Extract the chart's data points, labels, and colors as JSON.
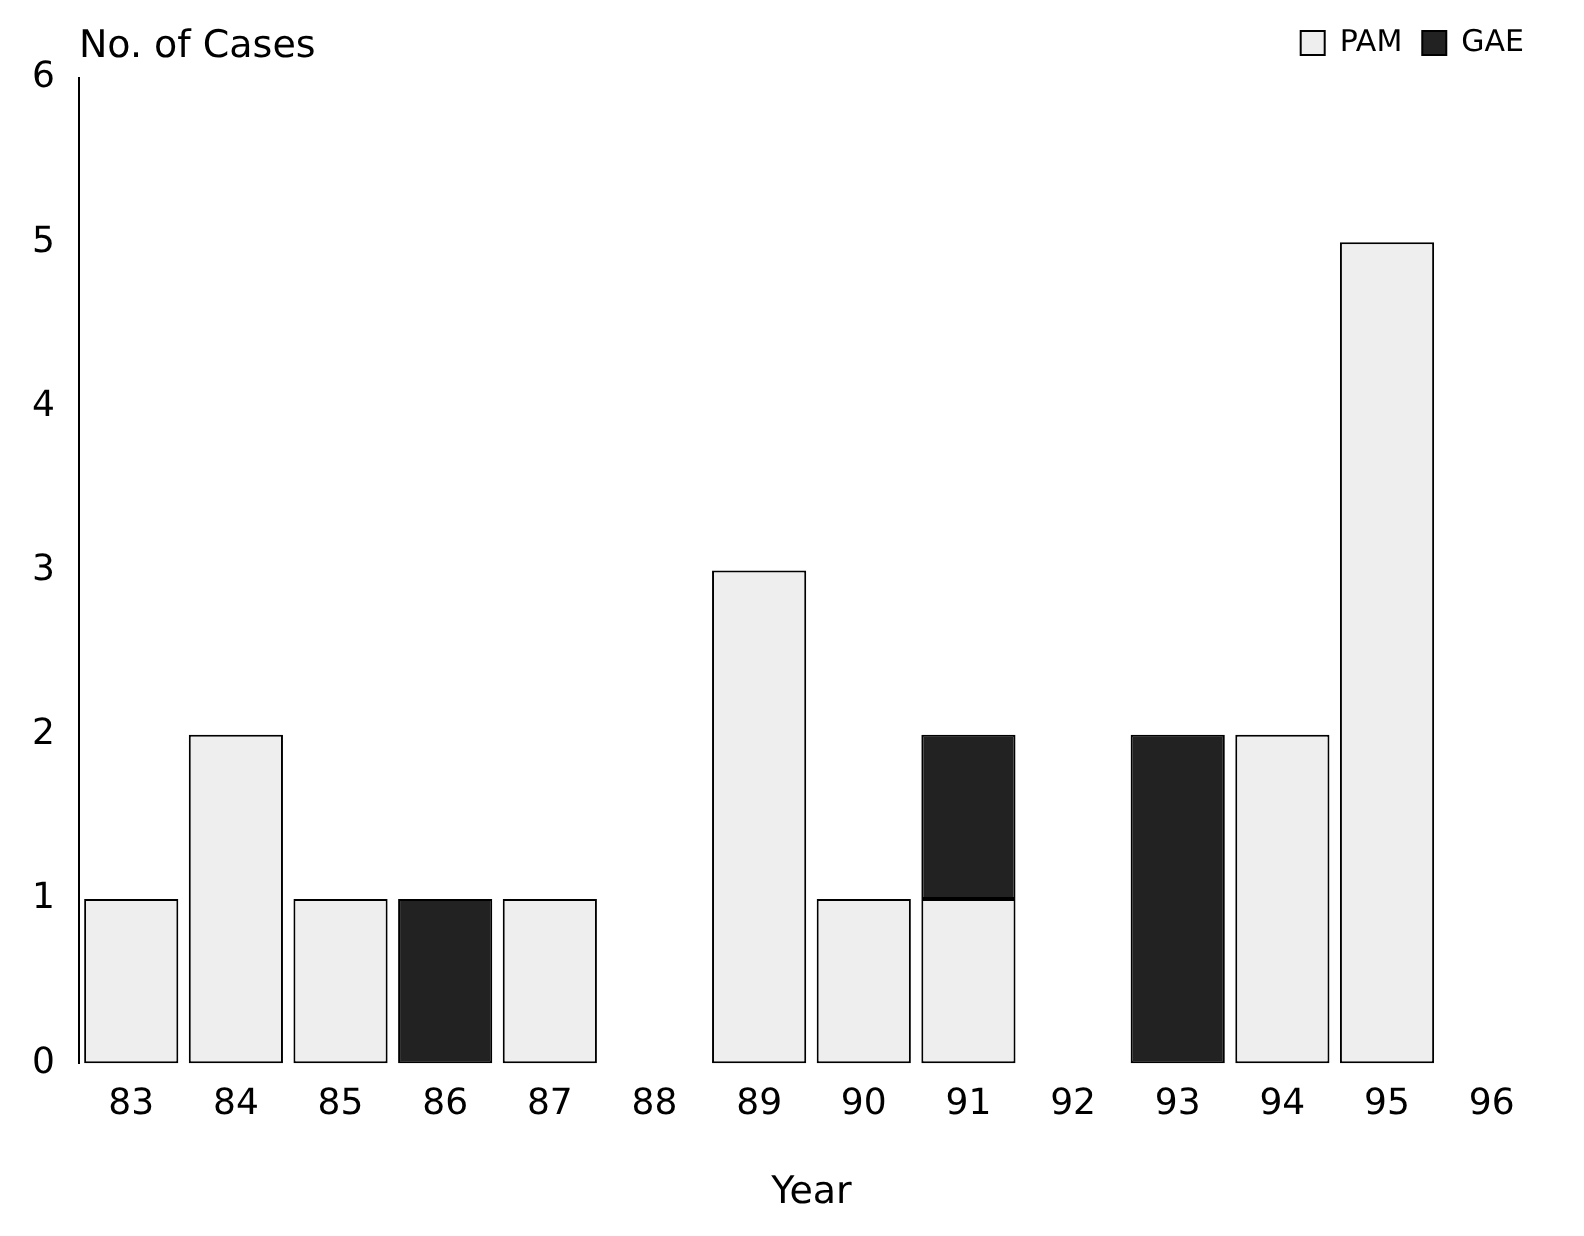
{
  "chart_data": {
    "type": "bar",
    "stacked": true,
    "xlabel": "Year",
    "ylabel": "No. of Cases",
    "categories": [
      "83",
      "84",
      "85",
      "86",
      "87",
      "88",
      "89",
      "90",
      "91",
      "92",
      "93",
      "94",
      "95",
      "96"
    ],
    "series": [
      {
        "name": "PAM",
        "color": "#eeeeee",
        "values": [
          1,
          2,
          1,
          0,
          1,
          0,
          3,
          1,
          1,
          0,
          0,
          2,
          5,
          0
        ]
      },
      {
        "name": "GAE",
        "color": "#222222",
        "values": [
          0,
          0,
          0,
          1,
          0,
          0,
          0,
          0,
          1,
          0,
          2,
          0,
          0,
          0
        ]
      }
    ],
    "ylim": [
      0,
      6
    ],
    "yticks": [
      0,
      1,
      2,
      3,
      4,
      5,
      6
    ],
    "grid": false,
    "legend": "top right"
  }
}
